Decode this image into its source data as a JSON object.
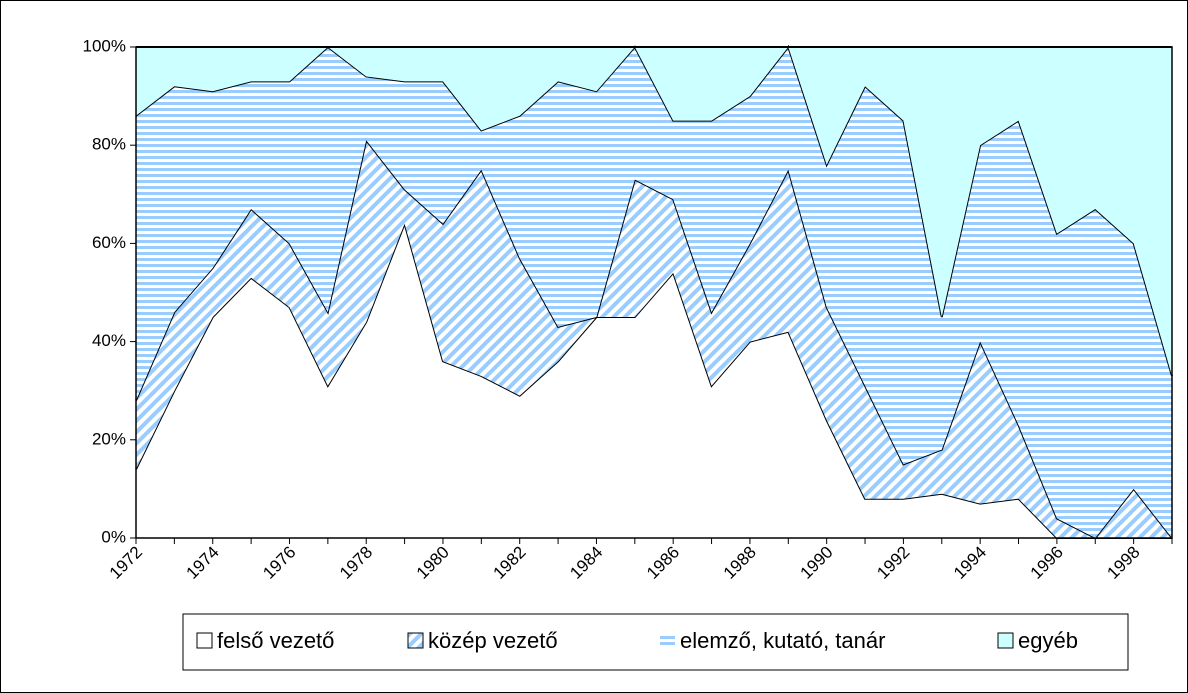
{
  "chart_data": {
    "type": "stacked-area-percent",
    "categories": [
      "1972",
      null,
      "1974",
      null,
      "1976",
      null,
      "1978",
      null,
      "1980",
      null,
      "1982",
      null,
      "1984",
      null,
      "1986",
      null,
      "1988",
      null,
      "1990",
      null,
      "1992",
      null,
      "1994",
      null,
      "1996",
      null,
      "1998",
      null
    ],
    "series": [
      {
        "name": "felső vezető",
        "color": "#ffffff",
        "pattern": "solid",
        "values": [
          14,
          30,
          45,
          53,
          47,
          31,
          44,
          64,
          36,
          33,
          29,
          36,
          45,
          45,
          54,
          31,
          40,
          42,
          24,
          8,
          8,
          9,
          7,
          8,
          0,
          0,
          0,
          0
        ]
      },
      {
        "name": "közép vezető",
        "color": "#99ccff",
        "pattern": "diagonal",
        "values": [
          14,
          16,
          10,
          14,
          13,
          15,
          37,
          7,
          28,
          42,
          28,
          7,
          0,
          28,
          15,
          15,
          20,
          33,
          23,
          23,
          7,
          9,
          33,
          15,
          4,
          0,
          10,
          0
        ]
      },
      {
        "name": "elemző, kutató, tanár",
        "color": "#99ccff",
        "pattern": "horizontal",
        "values": [
          58,
          46,
          36,
          26,
          33,
          54,
          13,
          22,
          29,
          8,
          29,
          50,
          46,
          27,
          16,
          39,
          30,
          25,
          29,
          61,
          70,
          27,
          40,
          62,
          58,
          67,
          50,
          33
        ]
      },
      {
        "name": "egyéb",
        "color": "#ccffff",
        "pattern": "solid",
        "values": [
          14,
          8,
          9,
          7,
          7,
          0,
          6,
          7,
          7,
          17,
          14,
          7,
          9,
          0,
          15,
          15,
          10,
          0,
          24,
          8,
          15,
          55,
          20,
          15,
          38,
          33,
          40,
          67
        ]
      }
    ],
    "ylim": [
      0,
      100
    ],
    "yticks": [
      {
        "value": 0,
        "label": "0%"
      },
      {
        "value": 20,
        "label": "20%"
      },
      {
        "value": 40,
        "label": "40%"
      },
      {
        "value": 60,
        "label": "60%"
      },
      {
        "value": 80,
        "label": "80%"
      },
      {
        "value": 100,
        "label": "100%"
      }
    ],
    "legend": "bottom"
  }
}
